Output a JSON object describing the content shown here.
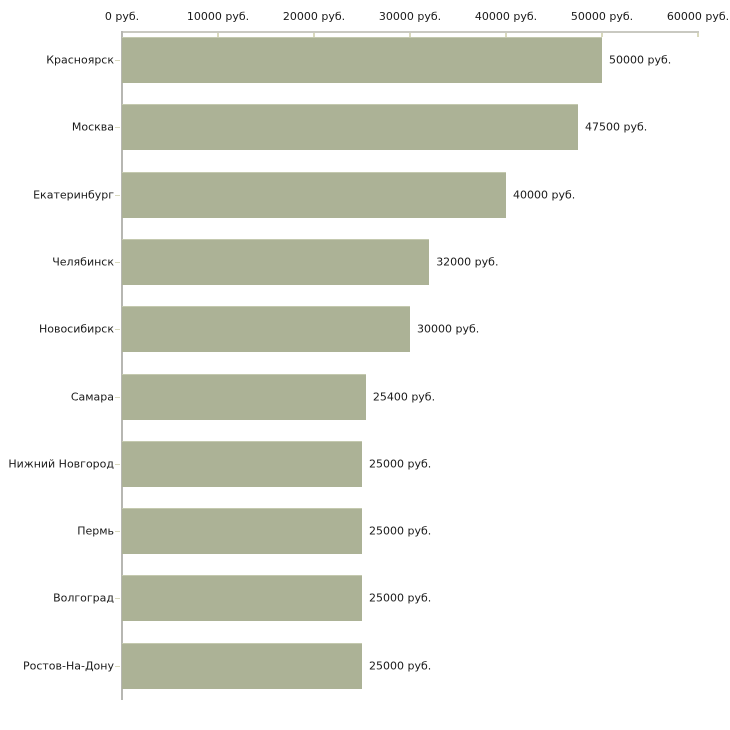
{
  "chart_data": {
    "type": "bar",
    "orientation": "horizontal",
    "title": "",
    "xlabel": "",
    "ylabel": "",
    "categories": [
      "Красноярск",
      "Москва",
      "Екатеринбург",
      "Челябинск",
      "Новосибирск",
      "Самара",
      "Нижний Новгород",
      "Пермь",
      "Волгоград",
      "Ростов-На-Дону"
    ],
    "values": [
      50000,
      47500,
      40000,
      32000,
      30000,
      25400,
      25000,
      25000,
      25000,
      25000
    ],
    "value_labels": [
      "50000 руб.",
      "47500 руб.",
      "40000 руб.",
      "32000 руб.",
      "30000 руб.",
      "25400 руб.",
      "25000 руб.",
      "25000 руб.",
      "25000 руб.",
      "25000 руб."
    ],
    "x_ticks": [
      0,
      10000,
      20000,
      30000,
      40000,
      50000,
      60000
    ],
    "x_tick_labels": [
      "0 руб.",
      "10000 руб.",
      "20000 руб.",
      "30000 руб.",
      "40000 руб.",
      "50000 руб.",
      "60000 руб."
    ],
    "xlim": [
      0,
      60000
    ],
    "grid": false,
    "legend": false,
    "colors": {
      "bar": "#acb296",
      "bar_edge": "#c4c9af",
      "x_axis": "#c9c9c1",
      "y_axis": "#b7b7b2",
      "tick": "#d9d9bd",
      "text": "#1a1a1a",
      "background": "#ffffff"
    }
  }
}
